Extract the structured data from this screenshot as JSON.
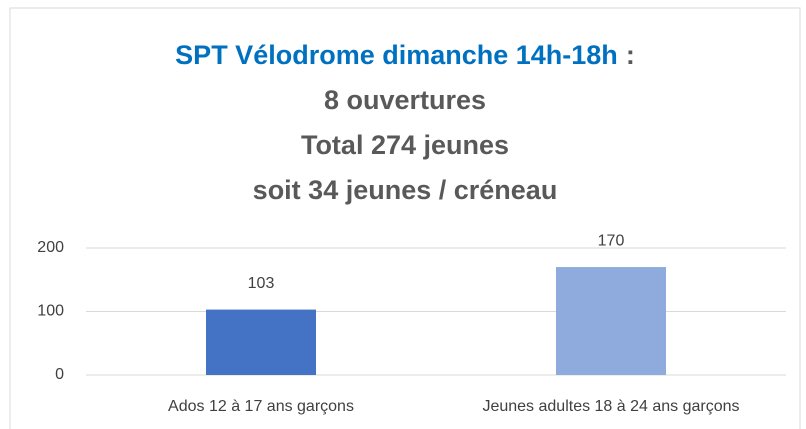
{
  "chart_data": {
    "type": "bar",
    "title": [
      [
        "SPT Vélodrome dimanche 14h-18h",
        ":"
      ],
      [
        "8 ouvertures"
      ],
      [
        "Total 274 jeunes"
      ],
      [
        "soit 34 jeunes / créneau"
      ]
    ],
    "title_colors": [
      "#0070c0",
      "#595959"
    ],
    "categories": [
      "Ados 12 à 17 ans garçons",
      "Jeunes adultes 18 à 24 ans garçons"
    ],
    "values": [
      103,
      170
    ],
    "colors": [
      "#4472c4",
      "#8faadc"
    ],
    "ylim": [
      0,
      200
    ],
    "yticks": [
      0,
      100,
      200
    ],
    "grid": true
  }
}
